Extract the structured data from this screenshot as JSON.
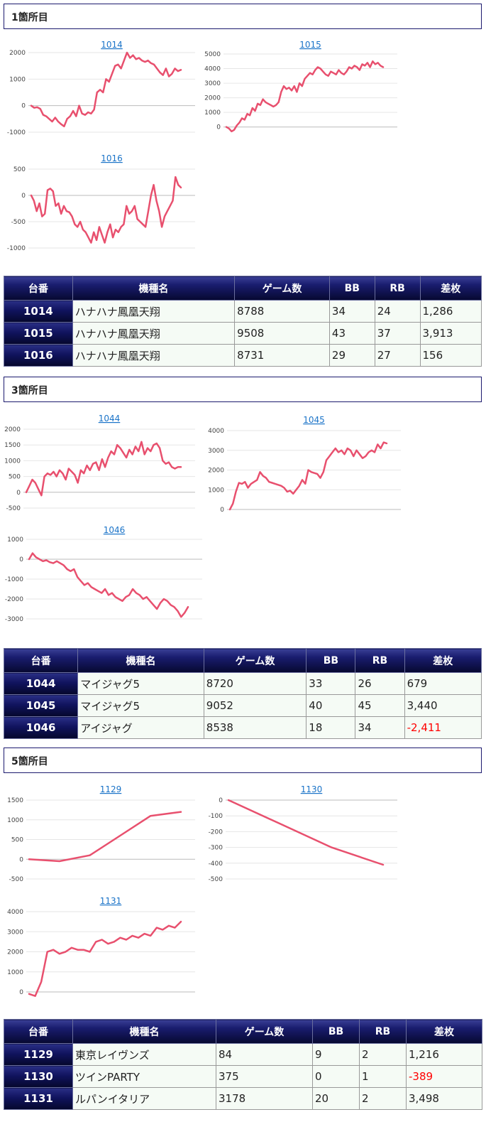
{
  "theme": {
    "line_color": "#e8506e",
    "header_border": "#1c1a6e",
    "link_color": "#1a73c8",
    "negative_color": "#ff0000"
  },
  "table_headers": [
    "台番",
    "機種名",
    "ゲーム数",
    "BB",
    "RB",
    "差枚"
  ],
  "sections": [
    {
      "title": "1箇所目",
      "rows": [
        {
          "no": "1014",
          "name": "ハナハナ鳳凰天翔",
          "games": "8788",
          "bb": "34",
          "rb": "24",
          "diff": "1,286",
          "negative": false
        },
        {
          "no": "1015",
          "name": "ハナハナ鳳凰天翔",
          "games": "9508",
          "bb": "43",
          "rb": "37",
          "diff": "3,913",
          "negative": false
        },
        {
          "no": "1016",
          "name": "ハナハナ鳳凰天翔",
          "games": "8731",
          "bb": "29",
          "rb": "27",
          "diff": "156",
          "negative": false
        }
      ]
    },
    {
      "title": "3箇所目",
      "rows": [
        {
          "no": "1044",
          "name": "マイジャグ5",
          "games": "8720",
          "bb": "33",
          "rb": "26",
          "diff": "679",
          "negative": false
        },
        {
          "no": "1045",
          "name": "マイジャグ5",
          "games": "9052",
          "bb": "40",
          "rb": "45",
          "diff": "3,440",
          "negative": false
        },
        {
          "no": "1046",
          "name": "アイジャグ",
          "games": "8538",
          "bb": "18",
          "rb": "34",
          "diff": "-2,411",
          "negative": true
        }
      ]
    },
    {
      "title": "5箇所目",
      "rows": [
        {
          "no": "1129",
          "name": "東京レイヴンズ",
          "games": "84",
          "bb": "9",
          "rb": "2",
          "diff": "1,216",
          "negative": false
        },
        {
          "no": "1130",
          "name": "ツインPARTY",
          "games": "375",
          "bb": "0",
          "rb": "1",
          "diff": "-389",
          "negative": true
        },
        {
          "no": "1131",
          "name": "ルパンイタリア",
          "games": "3178",
          "bb": "20",
          "rb": "2",
          "diff": "3,498",
          "negative": false
        }
      ]
    }
  ],
  "chart_data": [
    {
      "type": "line",
      "title": "1014",
      "yticks": [
        2000,
        1000,
        0,
        -1000
      ],
      "ylim": [
        -1000,
        2000
      ],
      "series": [
        {
          "values": [
            0,
            -80,
            -60,
            -120,
            -350,
            -400,
            -500,
            -600,
            -450,
            -600,
            -700,
            -780,
            -500,
            -400,
            -200,
            -400,
            0,
            -300,
            -350,
            -250,
            -300,
            -150,
            500,
            600,
            500,
            1000,
            900,
            1200,
            1500,
            1550,
            1400,
            1700,
            2000,
            1800,
            1900,
            1750,
            1800,
            1700,
            1650,
            1700,
            1600,
            1550,
            1400,
            1250,
            1150,
            1400,
            1100,
            1200,
            1400,
            1300,
            1350
          ]
        }
      ]
    },
    {
      "type": "line",
      "title": "1015",
      "yticks": [
        5000,
        4000,
        3000,
        2000,
        1000,
        0
      ],
      "ylim": [
        -500,
        5000
      ],
      "series": [
        {
          "values": [
            0,
            -100,
            -300,
            -200,
            100,
            300,
            600,
            500,
            900,
            800,
            1300,
            1100,
            1600,
            1500,
            1900,
            1700,
            1600,
            1500,
            1400,
            1500,
            1700,
            2400,
            2800,
            2600,
            2700,
            2500,
            2800,
            2400,
            3000,
            2800,
            3300,
            3500,
            3700,
            3600,
            3900,
            4100,
            4000,
            3800,
            3600,
            3500,
            3800,
            3700,
            3600,
            3900,
            3700,
            3600,
            3800,
            4100,
            4000,
            4200,
            4100,
            3900,
            4300,
            4200,
            4400,
            4100,
            4500,
            4300,
            4400,
            4200,
            4100
          ]
        }
      ]
    },
    {
      "type": "line",
      "title": "1016",
      "yticks": [
        500,
        0,
        -500,
        -1000
      ],
      "ylim": [
        -1000,
        500
      ],
      "series": [
        {
          "values": [
            0,
            -100,
            -300,
            -150,
            -400,
            -350,
            100,
            130,
            80,
            -200,
            -150,
            -350,
            -200,
            -300,
            -320,
            -400,
            -550,
            -600,
            -500,
            -650,
            -700,
            -800,
            -900,
            -700,
            -850,
            -600,
            -750,
            -900,
            -700,
            -550,
            -800,
            -650,
            -700,
            -600,
            -550,
            -200,
            -350,
            -300,
            -200,
            -450,
            -500,
            -550,
            -600,
            -300,
            0,
            200,
            -100,
            -300,
            -600,
            -400,
            -300,
            -200,
            -100,
            350,
            200,
            150
          ]
        }
      ]
    },
    {
      "type": "line",
      "title": "1044",
      "yticks": [
        2000,
        1500,
        1000,
        500,
        0,
        -500
      ],
      "ylim": [
        -500,
        2000
      ],
      "series": [
        {
          "values": [
            0,
            200,
            400,
            300,
            100,
            -100,
            500,
            600,
            550,
            650,
            500,
            700,
            600,
            400,
            750,
            650,
            550,
            300,
            700,
            600,
            850,
            700,
            900,
            950,
            700,
            1050,
            800,
            1100,
            1300,
            1200,
            1500,
            1400,
            1250,
            1100,
            1350,
            1200,
            1450,
            1300,
            1600,
            1200,
            1400,
            1300,
            1500,
            1550,
            1400,
            1000,
            900,
            950,
            800,
            750,
            800,
            800
          ]
        }
      ]
    },
    {
      "type": "line",
      "title": "1045",
      "yticks": [
        4000,
        3000,
        2000,
        1000,
        0
      ],
      "ylim": [
        0,
        4000
      ],
      "series": [
        {
          "values": [
            0,
            300,
            900,
            1350,
            1300,
            1400,
            1100,
            1300,
            1400,
            1500,
            1900,
            1700,
            1600,
            1400,
            1350,
            1300,
            1250,
            1200,
            1100,
            900,
            950,
            800,
            1000,
            1200,
            1500,
            1300,
            2000,
            1900,
            1850,
            1800,
            1600,
            1900,
            2500,
            2700,
            2900,
            3100,
            2900,
            3000,
            2800,
            3100,
            3000,
            2700,
            3000,
            2800,
            2600,
            2700,
            2900,
            3000,
            2900,
            3300,
            3100,
            3400,
            3350
          ]
        }
      ]
    },
    {
      "type": "line",
      "title": "1046",
      "yticks": [
        1000,
        0,
        -1000,
        -2000,
        -3000
      ],
      "ylim": [
        -3000,
        1000
      ],
      "series": [
        {
          "values": [
            0,
            300,
            100,
            0,
            -100,
            -50,
            -150,
            -200,
            -100,
            -200,
            -300,
            -500,
            -600,
            -500,
            -900,
            -1100,
            -1300,
            -1200,
            -1400,
            -1500,
            -1600,
            -1700,
            -1500,
            -1800,
            -1700,
            -1900,
            -2000,
            -2100,
            -1900,
            -1800,
            -1500,
            -1700,
            -1800,
            -2000,
            -1900,
            -2100,
            -2300,
            -2500,
            -2200,
            -2000,
            -2100,
            -2300,
            -2400,
            -2600,
            -2900,
            -2700,
            -2400
          ]
        }
      ]
    },
    {
      "type": "line",
      "title": "1129",
      "yticks": [
        1500,
        1000,
        500,
        0,
        -500
      ],
      "ylim": [
        -500,
        1500
      ],
      "series": [
        {
          "values": [
            0,
            -50,
            100,
            600,
            1100,
            1200
          ]
        }
      ]
    },
    {
      "type": "line",
      "title": "1130",
      "yticks": [
        0,
        -100,
        -200,
        -300,
        -400,
        -500
      ],
      "ylim": [
        -500,
        0
      ],
      "series": [
        {
          "values": [
            0,
            -150,
            -300,
            -410
          ]
        }
      ]
    },
    {
      "type": "line",
      "title": "1131",
      "yticks": [
        4000,
        3000,
        2000,
        1000,
        0
      ],
      "ylim": [
        0,
        4000
      ],
      "series": [
        {
          "values": [
            -100,
            -200,
            500,
            2000,
            2100,
            1900,
            2000,
            2200,
            2100,
            2100,
            2000,
            2500,
            2600,
            2400,
            2500,
            2700,
            2600,
            2800,
            2700,
            2900,
            2800,
            3200,
            3100,
            3300,
            3200,
            3500
          ]
        }
      ]
    }
  ]
}
